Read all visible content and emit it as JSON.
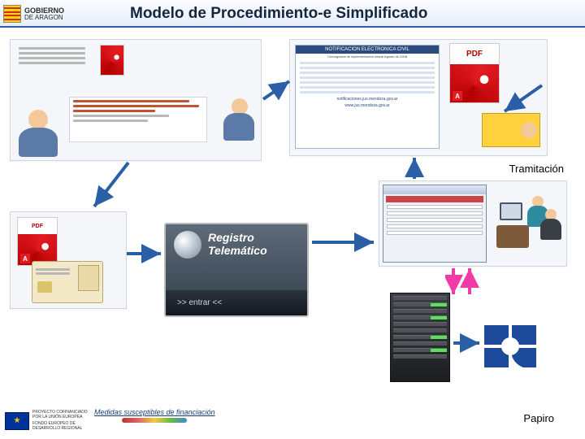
{
  "header": {
    "title": "Modelo de Procedimiento-e Simplificado",
    "logo": {
      "line1": "GOBIERNO",
      "line2": "DE ARAGON"
    },
    "flag_colors": [
      "#ffd700",
      "#d6292c",
      "#ffd700",
      "#d6292c",
      "#ffd700",
      "#d6292c",
      "#ffd700",
      "#d6292c",
      "#ffd700"
    ]
  },
  "labels": {
    "tramitacion": "Tramitación",
    "papiro": "Papiro"
  },
  "registro": {
    "line1": "Registro",
    "line2": "Telemático",
    "enter": ">> entrar <<"
  },
  "bluedoc": {
    "title": "NOTIFICACION ELECTRONICA CIVIL",
    "sub": "Cronograma de implementación desde Agosto de 2008",
    "foot1": "notificaciones.jus.mendoza.gov.ar",
    "foot2": "www.jus.mendoza.gov.ar"
  },
  "pdf_label": "PDF",
  "adobe_a": "A",
  "footer": {
    "eu1": "PROYECTO COFINANCIADO",
    "eu2": "POR LA UNIÓN EUROPEA",
    "eu3": "FONDO EUROPEO DE",
    "eu4": "DESARROLLO REGIONAL",
    "medidas": "Medidas susceptibles de financiación"
  },
  "colors": {
    "header_border": "#2f5fa6",
    "arrow_blue": "#2a5fa6",
    "arrow_pink": "#f03aa8",
    "panel_bg": "#f4f6fa",
    "papiro_blue": "#1e4a9c"
  }
}
